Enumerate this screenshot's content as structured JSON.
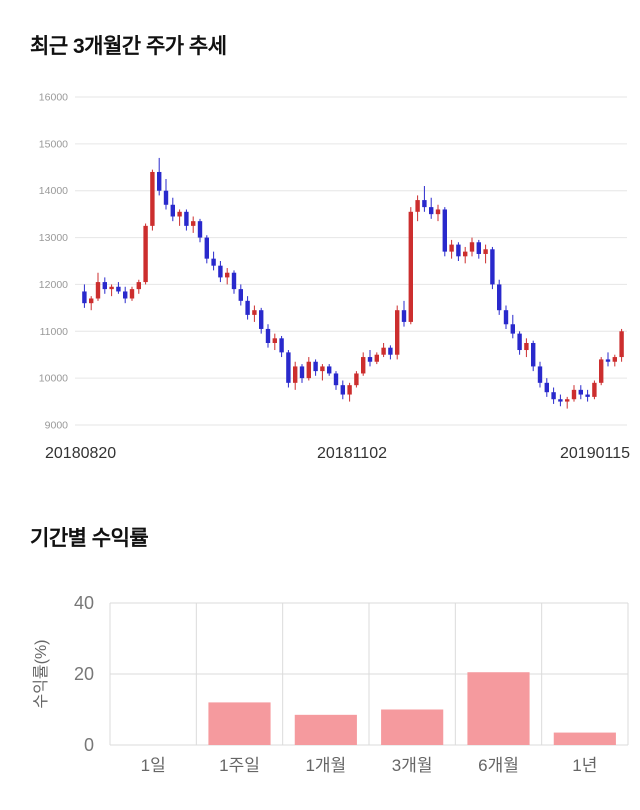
{
  "chart_data": [
    {
      "type": "candlestick",
      "title": "최근 3개월간 주가 추세",
      "x_labels": [
        "20180820",
        "20181102",
        "20190115"
      ],
      "y_ticks": [
        9000,
        10000,
        11000,
        12000,
        13000,
        14000,
        15000,
        16000
      ],
      "ylim": [
        9000,
        16000
      ],
      "up_color": "#cc2e2e",
      "down_color": "#2929cc",
      "grid_color": "#e6e6e6",
      "grid": "horizontal-only",
      "legend": "none",
      "candles_format": "open,high,low,close",
      "candles": [
        [
          11850,
          12000,
          11500,
          11600
        ],
        [
          11600,
          11750,
          11450,
          11700
        ],
        [
          11700,
          12250,
          11650,
          12050
        ],
        [
          12050,
          12150,
          11800,
          11900
        ],
        [
          11900,
          12000,
          11750,
          11950
        ],
        [
          11950,
          12050,
          11800,
          11850
        ],
        [
          11850,
          11950,
          11600,
          11700
        ],
        [
          11700,
          11950,
          11650,
          11900
        ],
        [
          11900,
          12100,
          11800,
          12050
        ],
        [
          12050,
          13300,
          12000,
          13250
        ],
        [
          13250,
          14450,
          13150,
          14400
        ],
        [
          14400,
          14700,
          13900,
          14000
        ],
        [
          14000,
          14250,
          13600,
          13700
        ],
        [
          13700,
          13850,
          13350,
          13450
        ],
        [
          13450,
          13600,
          13250,
          13550
        ],
        [
          13550,
          13600,
          13150,
          13250
        ],
        [
          13250,
          13450,
          13100,
          13350
        ],
        [
          13350,
          13400,
          12900,
          13000
        ],
        [
          13000,
          13050,
          12450,
          12550
        ],
        [
          12550,
          12700,
          12300,
          12400
        ],
        [
          12400,
          12500,
          12050,
          12150
        ],
        [
          12150,
          12350,
          12000,
          12250
        ],
        [
          12250,
          12300,
          11800,
          11900
        ],
        [
          11900,
          12000,
          11550,
          11650
        ],
        [
          11650,
          11750,
          11250,
          11350
        ],
        [
          11350,
          11550,
          11200,
          11450
        ],
        [
          11450,
          11500,
          10950,
          11050
        ],
        [
          11050,
          11150,
          10650,
          10750
        ],
        [
          10750,
          10950,
          10600,
          10850
        ],
        [
          10850,
          10900,
          10450,
          10550
        ],
        [
          10550,
          10600,
          9800,
          9900
        ],
        [
          9900,
          10350,
          9750,
          10250
        ],
        [
          10250,
          10300,
          9900,
          10000
        ],
        [
          10000,
          10450,
          9950,
          10350
        ],
        [
          10350,
          10400,
          10050,
          10150
        ],
        [
          10150,
          10300,
          9950,
          10250
        ],
        [
          10250,
          10300,
          10050,
          10100
        ],
        [
          10100,
          10150,
          9750,
          9850
        ],
        [
          9850,
          9950,
          9550,
          9650
        ],
        [
          9650,
          9900,
          9500,
          9850
        ],
        [
          9850,
          10150,
          9800,
          10100
        ],
        [
          10100,
          10550,
          10050,
          10450
        ],
        [
          10450,
          10600,
          10250,
          10350
        ],
        [
          10350,
          10550,
          10300,
          10500
        ],
        [
          10500,
          10750,
          10450,
          10650
        ],
        [
          10650,
          10700,
          10400,
          10500
        ],
        [
          10500,
          11550,
          10400,
          11450
        ],
        [
          11450,
          11650,
          11100,
          11200
        ],
        [
          11200,
          13650,
          11150,
          13550
        ],
        [
          13550,
          13900,
          13350,
          13800
        ],
        [
          13800,
          14100,
          13550,
          13650
        ],
        [
          13650,
          13850,
          13400,
          13500
        ],
        [
          13500,
          13700,
          13350,
          13600
        ],
        [
          13600,
          13650,
          12600,
          12700
        ],
        [
          12700,
          12950,
          12550,
          12850
        ],
        [
          12850,
          12900,
          12500,
          12600
        ],
        [
          12600,
          12800,
          12450,
          12700
        ],
        [
          12700,
          13000,
          12600,
          12900
        ],
        [
          12900,
          12950,
          12550,
          12650
        ],
        [
          12650,
          12850,
          12450,
          12750
        ],
        [
          12750,
          12800,
          11900,
          12000
        ],
        [
          12000,
          12100,
          11350,
          11450
        ],
        [
          11450,
          11550,
          11050,
          11150
        ],
        [
          11150,
          11350,
          10850,
          10950
        ],
        [
          10950,
          11000,
          10500,
          10600
        ],
        [
          10600,
          10850,
          10450,
          10750
        ],
        [
          10750,
          10800,
          10150,
          10250
        ],
        [
          10250,
          10350,
          9800,
          9900
        ],
        [
          9900,
          10000,
          9600,
          9700
        ],
        [
          9700,
          9800,
          9450,
          9550
        ],
        [
          9550,
          9650,
          9400,
          9500
        ],
        [
          9500,
          9600,
          9350,
          9550
        ],
        [
          9550,
          9850,
          9500,
          9750
        ],
        [
          9750,
          9850,
          9550,
          9650
        ],
        [
          9650,
          9750,
          9500,
          9600
        ],
        [
          9600,
          9950,
          9550,
          9900
        ],
        [
          9900,
          10450,
          9850,
          10400
        ],
        [
          10400,
          10550,
          10250,
          10350
        ],
        [
          10350,
          10500,
          10250,
          10450
        ],
        [
          10450,
          11050,
          10350,
          11000
        ]
      ]
    },
    {
      "type": "bar",
      "title": "기간별 수익률",
      "ylabel": "수익률(%)",
      "categories": [
        "1일",
        "1주일",
        "1개월",
        "3개월",
        "6개월",
        "1년"
      ],
      "values": [
        0,
        12,
        8.5,
        10,
        20.5,
        3.5
      ],
      "y_ticks": [
        0,
        20,
        40
      ],
      "ylim": [
        0,
        40
      ],
      "bar_color": "#f59a9e",
      "grid_color": "#dbdbdb",
      "grid": "horizontal-and-category-separators",
      "legend": "none"
    }
  ]
}
